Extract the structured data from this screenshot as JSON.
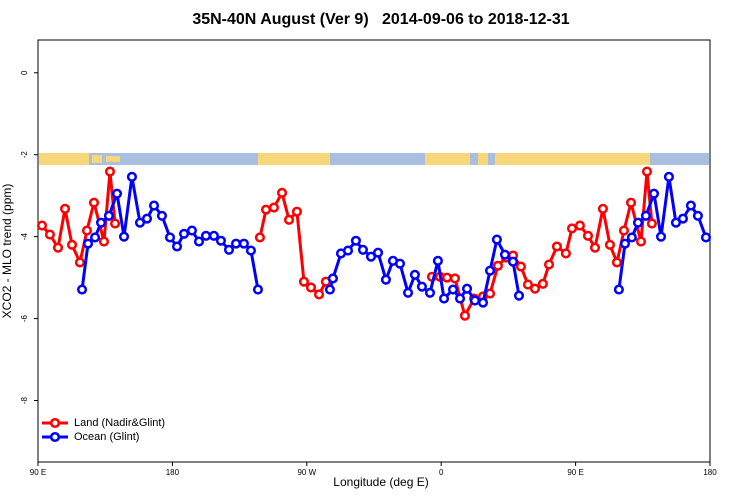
{
  "chart_data": {
    "type": "line",
    "title": "35N-40N August (Ver 9)   2014-09-06 to 2018-12-31",
    "x_label": "Longitude (deg E)",
    "y_label": "XCO2 - MLO trend (ppm)",
    "xlim": [
      90,
      540
    ],
    "xticks": [
      {
        "value": 90,
        "label": "90 E"
      },
      180,
      {
        "value": 270,
        "label": "90 W"
      },
      {
        "value": 360,
        "label": "0"
      },
      {
        "value": 450,
        "label": "90 E"
      },
      {
        "value": 540,
        "label": "180"
      }
    ],
    "ylim": [
      -9.5,
      0.8
    ],
    "yticks": [
      -8,
      -6,
      -4,
      -2,
      0
    ],
    "legend": "bottomleft",
    "series": [
      {
        "name": "Land (Nadir&Glint)",
        "color": "#ff0000",
        "x": [
          92.7,
          98.0,
          103.4,
          108.1,
          112.8,
          118.1,
          122.8,
          127.5,
          134.2,
          138.2,
          141.6,
          238.6,
          242.7,
          248.0,
          253.4,
          258.1,
          263.4,
          268.1,
          272.8,
          278.2,
          282.8,
          353.8,
          359.2,
          363.9,
          369.2,
          375.9,
          382.0,
          388.0,
          392.7,
          398.0,
          403.4,
          408.1,
          413.4,
          418.1,
          422.8,
          428.1,
          432.2,
          437.5,
          443.5,
          447.6,
          452.9,
          458.3,
          463.0,
          468.3,
          473.0,
          477.7,
          482.4,
          487.1,
          493.8,
          497.8,
          501.1
        ],
        "values": [
          -3.73,
          -3.95,
          -4.27,
          -3.32,
          -4.2,
          -4.63,
          -3.85,
          -3.17,
          -4.12,
          -2.41,
          -3.68,
          -4.02,
          -3.34,
          -3.29,
          -2.93,
          -3.59,
          -3.39,
          -5.1,
          -5.24,
          -5.41,
          -5.1,
          -4.98,
          -4.98,
          -5.0,
          -5.02,
          -5.93,
          -5.51,
          -5.46,
          -5.39,
          -4.71,
          -4.51,
          -4.46,
          -4.73,
          -5.17,
          -5.27,
          -5.15,
          -4.68,
          -4.24,
          -4.41,
          -3.8,
          -3.73,
          -3.98,
          -4.27,
          -3.32,
          -4.2,
          -4.63,
          -3.85,
          -3.17,
          -4.12,
          -2.41,
          -3.68
        ]
      },
      {
        "name": "Ocean (Glint)",
        "color": "#0000ff",
        "x": [
          119.5,
          123.5,
          128.2,
          132.2,
          137.5,
          142.9,
          147.6,
          152.9,
          158.3,
          163.0,
          167.7,
          173.0,
          178.4,
          183.1,
          187.8,
          193.1,
          197.8,
          202.5,
          207.8,
          212.5,
          217.9,
          222.6,
          227.9,
          232.6,
          237.3,
          285.5,
          287.5,
          292.9,
          297.6,
          302.9,
          307.6,
          313.0,
          317.7,
          323.0,
          327.7,
          332.4,
          337.8,
          342.4,
          347.1,
          352.5,
          357.8,
          361.9,
          367.9,
          372.6,
          377.3,
          382.6,
          388.0,
          392.7,
          397.3,
          402.7,
          408.1,
          412.1,
          479.0,
          483.1,
          487.7,
          491.8,
          497.1,
          502.5,
          507.2,
          512.5,
          517.2,
          521.9,
          527.2,
          531.9,
          537.3
        ],
        "values": [
          -5.29,
          -4.17,
          -4.02,
          -3.66,
          -3.49,
          -2.95,
          -4.0,
          -2.54,
          -3.66,
          -3.56,
          -3.24,
          -3.49,
          -4.02,
          -4.24,
          -3.93,
          -3.85,
          -4.12,
          -3.98,
          -3.98,
          -4.1,
          -4.32,
          -4.17,
          -4.17,
          -4.34,
          -5.29,
          -5.29,
          -5.02,
          -4.41,
          -4.34,
          -4.1,
          -4.32,
          -4.49,
          -4.39,
          -5.05,
          -4.59,
          -4.66,
          -5.37,
          -4.93,
          -5.22,
          -5.37,
          -4.59,
          -5.51,
          -5.29,
          -5.51,
          -5.27,
          -5.56,
          -5.61,
          -4.83,
          -4.07,
          -4.44,
          -4.61,
          -5.44,
          -5.29,
          -4.17,
          -4.02,
          -3.66,
          -3.49,
          -2.95,
          -4.0,
          -2.54,
          -3.66,
          -3.56,
          -3.24,
          -3.49,
          -4.02
        ]
      }
    ]
  }
}
